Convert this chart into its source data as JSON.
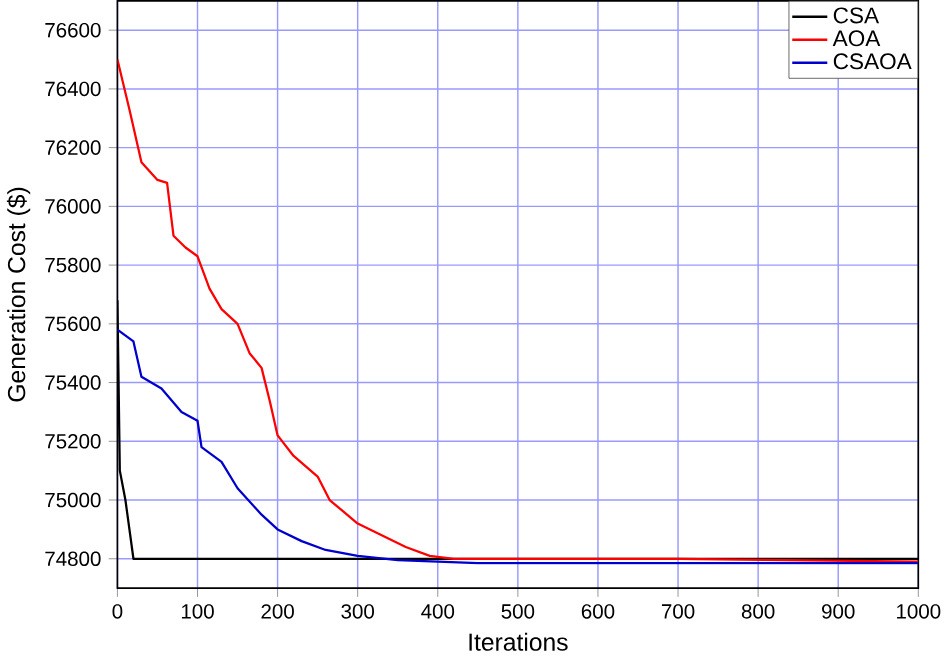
{
  "chart_data": {
    "type": "line",
    "xlabel": "Iterations",
    "ylabel": "Generation Cost ($)",
    "xlim": [
      0,
      1000
    ],
    "ylim": [
      74700,
      76700
    ],
    "xticks": [
      0,
      100,
      200,
      300,
      400,
      500,
      600,
      700,
      800,
      900,
      1000
    ],
    "yticks": [
      74800,
      75000,
      75200,
      75400,
      75600,
      75800,
      76000,
      76200,
      76400,
      76600
    ],
    "grid": true,
    "legend": "top right",
    "marker": "none",
    "line_style": "solid",
    "series": [
      {
        "name": "CSA",
        "color": "#000000",
        "x": [
          0,
          3,
          10,
          15,
          20,
          1000
        ],
        "values": [
          75680,
          75100,
          75000,
          74900,
          74800,
          74800
        ]
      },
      {
        "name": "AOA",
        "color": "#ff0000",
        "x": [
          0,
          15,
          30,
          50,
          62,
          70,
          85,
          100,
          115,
          130,
          150,
          165,
          180,
          190,
          200,
          220,
          250,
          265,
          300,
          330,
          360,
          390,
          420,
          700,
          1000
        ],
        "values": [
          76500,
          76330,
          76150,
          76090,
          76080,
          75900,
          75860,
          75830,
          75720,
          75650,
          75600,
          75500,
          75450,
          75340,
          75220,
          75150,
          75080,
          75000,
          74920,
          74880,
          74840,
          74810,
          74800,
          74800,
          74790
        ]
      },
      {
        "name": "CSAOA",
        "color": "#0000cc",
        "x": [
          0,
          20,
          30,
          55,
          80,
          100,
          105,
          130,
          150,
          180,
          200,
          230,
          260,
          300,
          350,
          450,
          1000
        ],
        "values": [
          75580,
          75540,
          75420,
          75380,
          75300,
          75270,
          75180,
          75130,
          75040,
          74950,
          74900,
          74860,
          74830,
          74810,
          74795,
          74785,
          74785
        ]
      }
    ]
  }
}
